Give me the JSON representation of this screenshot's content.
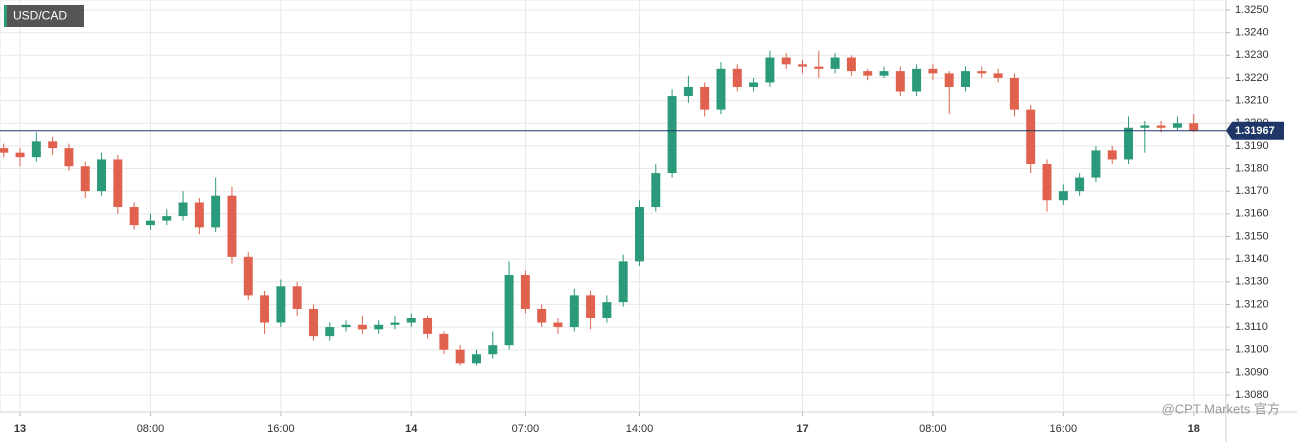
{
  "chart_data": {
    "type": "candlestick",
    "title": "USD/CAD",
    "watermark": "@CPT Markets 官方",
    "up_color": "#2b9a7a",
    "down_color": "#e0614d",
    "price_line_color": "#1e3766",
    "grid": true,
    "current_price": 1.31967,
    "xlim": [
      -1.23,
      73.98
    ],
    "ylim": [
      1.30725,
      1.32544
    ],
    "xticks": [
      {
        "value": 0,
        "label": "13"
      },
      {
        "value": 8,
        "label": "08:00"
      },
      {
        "value": 16,
        "label": "16:00"
      },
      {
        "value": 24,
        "label": "14"
      },
      {
        "value": 31,
        "label": "07:00"
      },
      {
        "value": 38,
        "label": "14:00"
      },
      {
        "value": 48,
        "label": "17"
      },
      {
        "value": 56,
        "label": "08:00"
      },
      {
        "value": 64,
        "label": "16:00"
      },
      {
        "value": 72,
        "label": "18"
      }
    ],
    "yticks": [
      {
        "value": 1.308,
        "label": "1.3080"
      },
      {
        "value": 1.309,
        "label": "1.3090"
      },
      {
        "value": 1.31,
        "label": "1.3100"
      },
      {
        "value": 1.311,
        "label": "1.3110"
      },
      {
        "value": 1.312,
        "label": "1.3120"
      },
      {
        "value": 1.313,
        "label": "1.3130"
      },
      {
        "value": 1.314,
        "label": "1.3140"
      },
      {
        "value": 1.315,
        "label": "1.3150"
      },
      {
        "value": 1.316,
        "label": "1.3160"
      },
      {
        "value": 1.317,
        "label": "1.3170"
      },
      {
        "value": 1.318,
        "label": "1.3180"
      },
      {
        "value": 1.319,
        "label": "1.3190"
      },
      {
        "value": 1.32,
        "label": "1.3200"
      },
      {
        "value": 1.321,
        "label": "1.3210"
      },
      {
        "value": 1.322,
        "label": "1.3220"
      },
      {
        "value": 1.323,
        "label": "1.3230"
      },
      {
        "value": 1.324,
        "label": "1.3240"
      },
      {
        "value": 1.325,
        "label": "1.3250"
      }
    ],
    "x": [
      -1,
      0,
      1,
      2,
      3,
      4,
      5,
      6,
      7,
      8,
      9,
      10,
      11,
      12,
      13,
      14,
      15,
      16,
      17,
      18,
      19,
      20,
      21,
      22,
      23,
      24,
      25,
      26,
      27,
      28,
      29,
      30,
      31,
      32,
      33,
      34,
      35,
      36,
      37,
      38,
      39,
      40,
      41,
      42,
      43,
      44,
      45,
      46,
      47,
      48,
      49,
      50,
      51,
      52,
      53,
      54,
      55,
      56,
      57,
      58,
      59,
      60,
      61,
      62,
      63,
      64,
      65,
      66,
      67,
      68,
      69,
      70,
      71,
      72
    ],
    "open": [
      1.3189,
      1.3187,
      1.3185,
      1.3192,
      1.3189,
      1.3181,
      1.317,
      1.3184,
      1.3163,
      1.3155,
      1.3157,
      1.3159,
      1.3165,
      1.3154,
      1.3168,
      1.3141,
      1.3124,
      1.3112,
      1.3128,
      1.3118,
      1.3106,
      1.311,
      1.3111,
      1.3109,
      1.3111,
      1.3112,
      1.3114,
      1.3107,
      1.31,
      1.3094,
      1.3098,
      1.3102,
      1.3133,
      1.3118,
      1.3112,
      1.311,
      1.3124,
      1.3114,
      1.3121,
      1.3139,
      1.3163,
      1.3178,
      1.3212,
      1.3216,
      1.3206,
      1.3224,
      1.3216,
      1.3218,
      1.3229,
      1.3226,
      1.3225,
      1.3224,
      1.3229,
      1.3223,
      1.3221,
      1.3223,
      1.3214,
      1.3224,
      1.3222,
      1.3216,
      1.3223,
      1.3222,
      1.322,
      1.3206,
      1.3182,
      1.3166,
      1.317,
      1.3176,
      1.3188,
      1.3184,
      1.3198,
      1.3199,
      1.3198,
      1.32
    ],
    "high": [
      1.3191,
      1.3189,
      1.3196,
      1.3194,
      1.3191,
      1.3183,
      1.3187,
      1.3186,
      1.3165,
      1.316,
      1.3162,
      1.317,
      1.3167,
      1.3176,
      1.3172,
      1.3143,
      1.3126,
      1.3131,
      1.313,
      1.312,
      1.3112,
      1.3113,
      1.3115,
      1.3113,
      1.3115,
      1.3116,
      1.3115,
      1.3108,
      1.3102,
      1.31,
      1.3108,
      1.3139,
      1.3135,
      1.312,
      1.3114,
      1.3127,
      1.3126,
      1.3124,
      1.3142,
      1.3166,
      1.3182,
      1.3215,
      1.3221,
      1.3218,
      1.3227,
      1.3226,
      1.322,
      1.3232,
      1.3231,
      1.3228,
      1.3232,
      1.3231,
      1.323,
      1.3224,
      1.3225,
      1.3225,
      1.3226,
      1.3226,
      1.3223,
      1.3225,
      1.3225,
      1.3224,
      1.3222,
      1.3208,
      1.3184,
      1.3173,
      1.3178,
      1.319,
      1.319,
      1.3203,
      1.3201,
      1.3201,
      1.3203,
      1.3204
    ],
    "low": [
      1.3185,
      1.3181,
      1.3183,
      1.3186,
      1.3179,
      1.3167,
      1.3168,
      1.316,
      1.3153,
      1.3153,
      1.3155,
      1.3157,
      1.3151,
      1.3152,
      1.3138,
      1.3122,
      1.3107,
      1.311,
      1.3115,
      1.3104,
      1.3104,
      1.3108,
      1.3107,
      1.3107,
      1.3109,
      1.311,
      1.3105,
      1.3098,
      1.3093,
      1.3093,
      1.3096,
      1.31,
      1.3116,
      1.311,
      1.3107,
      1.3108,
      1.3109,
      1.3112,
      1.3119,
      1.3137,
      1.3161,
      1.3176,
      1.3209,
      1.3203,
      1.3204,
      1.3214,
      1.3214,
      1.3216,
      1.3224,
      1.3222,
      1.322,
      1.3222,
      1.3221,
      1.3219,
      1.322,
      1.3212,
      1.3212,
      1.3219,
      1.3204,
      1.3214,
      1.322,
      1.3218,
      1.3203,
      1.3178,
      1.3161,
      1.3164,
      1.3168,
      1.3174,
      1.3182,
      1.3182,
      1.3187,
      1.3196,
      1.3197,
      1.3196
    ],
    "close": [
      1.3187,
      1.3185,
      1.3192,
      1.3189,
      1.3181,
      1.317,
      1.3184,
      1.3163,
      1.3155,
      1.3157,
      1.3159,
      1.3165,
      1.3154,
      1.3168,
      1.3141,
      1.3124,
      1.3112,
      1.3128,
      1.3118,
      1.3106,
      1.311,
      1.3111,
      1.3109,
      1.3111,
      1.3112,
      1.3114,
      1.3107,
      1.31,
      1.3094,
      1.3098,
      1.3102,
      1.3133,
      1.3118,
      1.3112,
      1.311,
      1.3124,
      1.3114,
      1.3121,
      1.3139,
      1.3163,
      1.3178,
      1.3212,
      1.3216,
      1.3206,
      1.3224,
      1.3216,
      1.3218,
      1.3229,
      1.3226,
      1.3225,
      1.3224,
      1.3229,
      1.3223,
      1.3221,
      1.3223,
      1.3214,
      1.3224,
      1.3222,
      1.3216,
      1.3223,
      1.3222,
      1.322,
      1.3206,
      1.3182,
      1.3166,
      1.317,
      1.3176,
      1.3188,
      1.3184,
      1.3198,
      1.3199,
      1.3198,
      1.32,
      1.31967
    ]
  }
}
